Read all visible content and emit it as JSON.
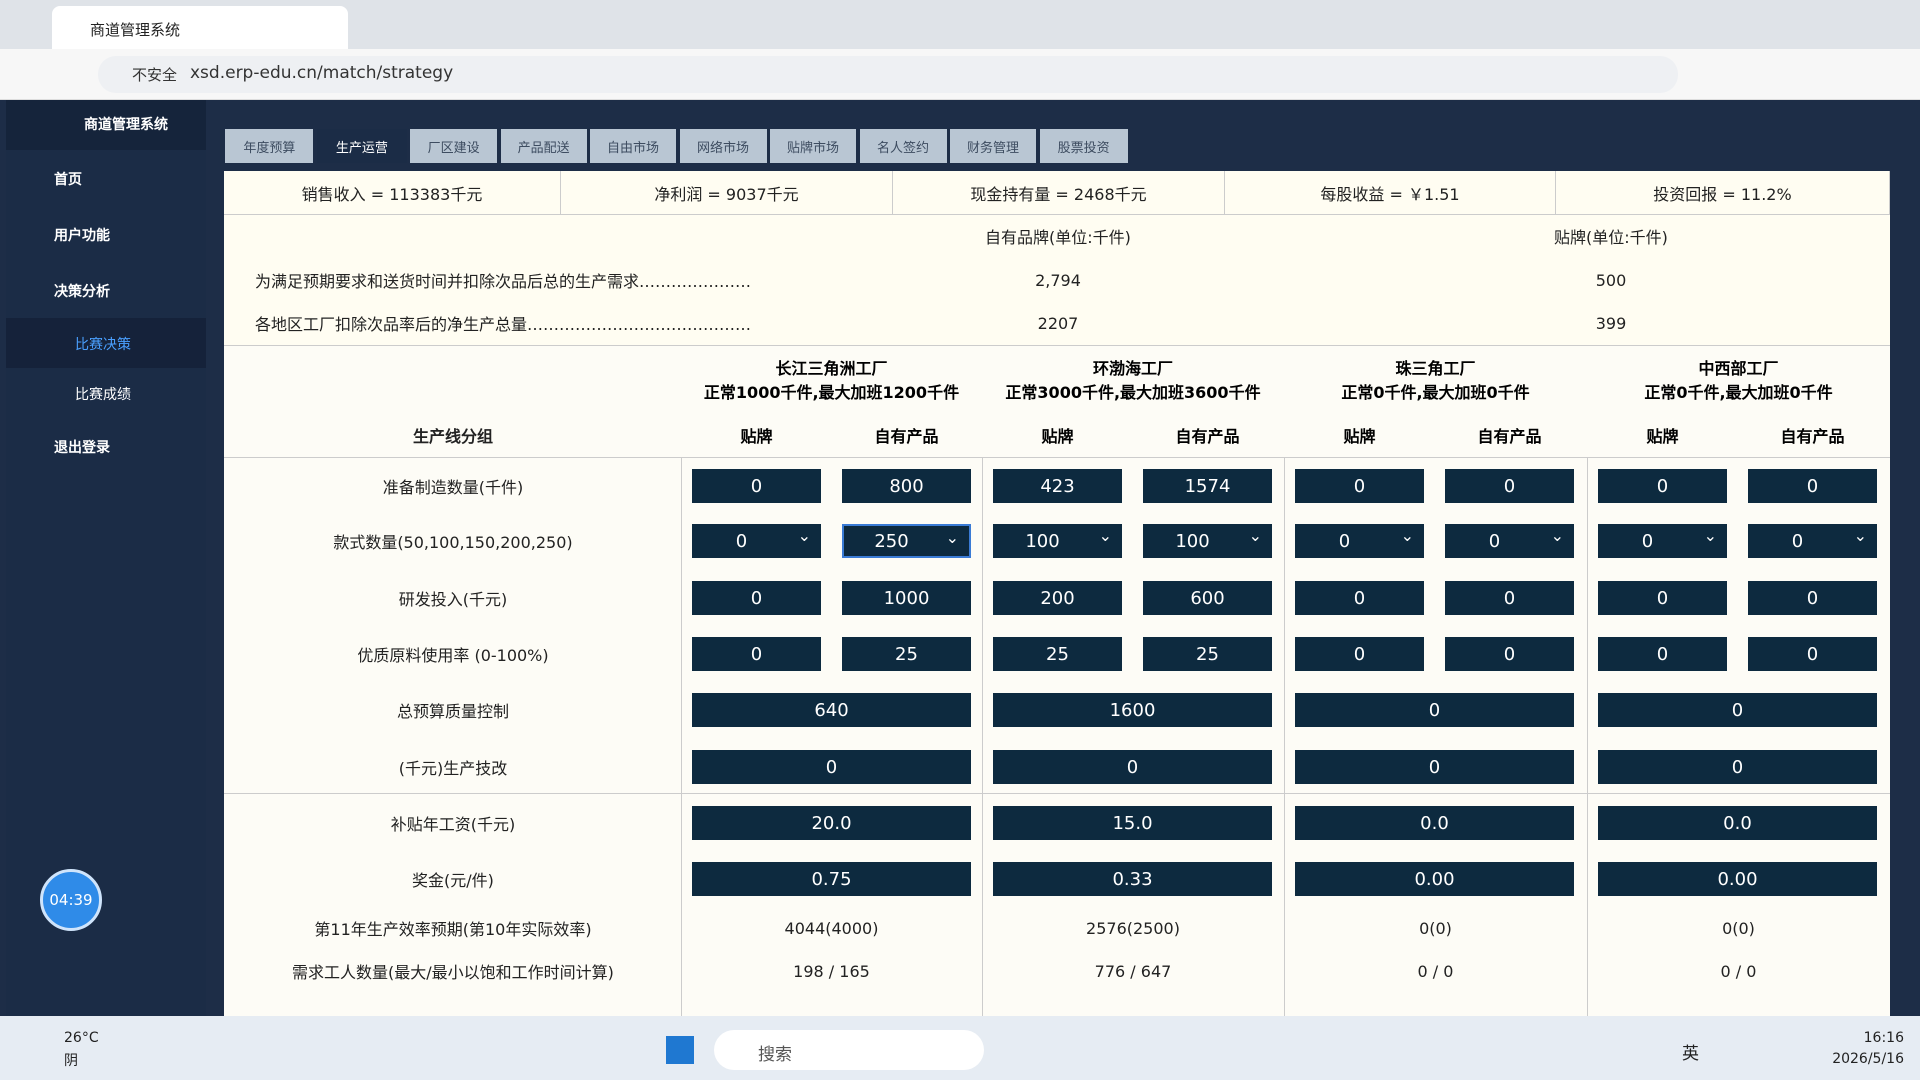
{
  "browser": {
    "tab_title": "商道管理系统",
    "security": "不安全",
    "url": "xsd.erp-edu.cn/match/strategy"
  },
  "sidebar": {
    "brand": "商道管理系统",
    "menu": [
      "首页",
      "用户功能",
      "决策分析",
      "比赛决策",
      "比赛成绩",
      "退出登录"
    ],
    "timer": "04:39"
  },
  "tabs": [
    "年度预算",
    "生产运营",
    "厂区建设",
    "产品配送",
    "自由市场",
    "网络市场",
    "贴牌市场",
    "名人签约",
    "财务管理",
    "股票投资"
  ],
  "summary": [
    "销售收入 = 113383千元",
    "净利润 = 9037千元",
    "现金持有量 = 2468千元",
    "每股收益 = ￥1.51",
    "投资回报 = 11.2%"
  ],
  "demand": {
    "headers": [
      "自有品牌(单位:千件)",
      "贴牌(单位:千件)"
    ],
    "rows": [
      {
        "label": "为满足预期要求和送货时间并扣除次品后总的生产需求…………………",
        "values": [
          "2,794",
          "500"
        ]
      },
      {
        "label": "各地区工厂扣除次品率后的净生产总量……………………………………",
        "values": [
          "2207",
          "399"
        ]
      }
    ]
  },
  "factories": {
    "group_label": "生产线分组",
    "sub": [
      "贴牌",
      "自有产品"
    ],
    "list": [
      {
        "name": "长江三角洲工厂",
        "capacity": "正常1000千件,最大加班1200千件"
      },
      {
        "name": "环渤海工厂",
        "capacity": "正常3000千件,最大加班3600千件"
      },
      {
        "name": "珠三角工厂",
        "capacity": "正常0千件,最大加班0千件"
      },
      {
        "name": "中西部工厂",
        "capacity": "正常0千件,最大加班0千件"
      }
    ]
  },
  "rows": [
    {
      "label": "准备制造数量(千件)",
      "kind": "input",
      "values": [
        "0",
        "800",
        "423",
        "1574",
        "0",
        "0",
        "0",
        "0"
      ]
    },
    {
      "label": "款式数量(50,100,150,200,250)",
      "kind": "select",
      "values": [
        "0",
        "250",
        "100",
        "100",
        "0",
        "0",
        "0",
        "0"
      ]
    },
    {
      "label": "研发投入(千元)",
      "kind": "input",
      "values": [
        "0",
        "1000",
        "200",
        "600",
        "0",
        "0",
        "0",
        "0"
      ]
    },
    {
      "label": "优质原料使用率 (0-100%)",
      "kind": "input",
      "values": [
        "0",
        "25",
        "25",
        "25",
        "0",
        "0",
        "0",
        "0"
      ]
    },
    {
      "label": "总预算质量控制",
      "kind": "merged",
      "values": [
        "640",
        "1600",
        "0",
        "0"
      ]
    },
    {
      "label": "(千元)生产技改",
      "kind": "merged",
      "values": [
        "0",
        "0",
        "0",
        "0"
      ]
    },
    {
      "label": "补贴年工资(千元)",
      "kind": "merged",
      "values": [
        "20.0",
        "15.0",
        "0.0",
        "0.0"
      ]
    },
    {
      "label": "奖金(元/件)",
      "kind": "merged",
      "values": [
        "0.75",
        "0.33",
        "0.00",
        "0.00"
      ]
    },
    {
      "label": "第11年生产效率预期(第10年实际效率)",
      "kind": "text",
      "values": [
        "4044(4000)",
        "2576(2500)",
        "0(0)",
        "0(0)"
      ]
    },
    {
      "label": "需求工人数量(最大/最小以饱和工作时间计算)",
      "kind": "text",
      "values": [
        "198 / 165",
        "776 / 647",
        "0 / 0",
        "0 / 0"
      ]
    }
  ],
  "taskbar": {
    "temp": "26°C",
    "weather": "阴",
    "search": "搜索",
    "lang": "英",
    "time": "16:16",
    "date": "2026/5/16"
  }
}
